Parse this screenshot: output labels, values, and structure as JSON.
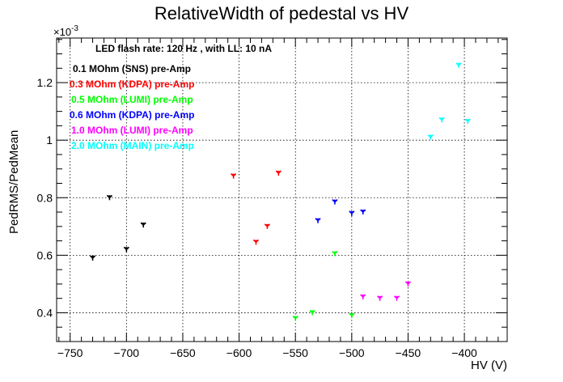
{
  "chart_data": {
    "type": "scatter",
    "title": "RelativeWidth of pedestal vs HV",
    "xlabel": "HV (V)",
    "ylabel": "PedRMS/PedMean",
    "y_exponent_label": "×10",
    "y_exponent_power": "-3",
    "xlim": [
      -762,
      -362
    ],
    "ylim": [
      0.3,
      1.355
    ],
    "x_ticks": [
      -750,
      -700,
      -650,
      -600,
      -550,
      -500,
      -450,
      -400
    ],
    "x_tick_labels": [
      "−750",
      "−700",
      "−650",
      "−600",
      "−550",
      "−500",
      "−450",
      "−400"
    ],
    "y_ticks": [
      0.4,
      0.6,
      0.8,
      1.0,
      1.2
    ],
    "y_tick_labels": [
      "0.4",
      "0.6",
      "0.8",
      "1",
      "1.2"
    ],
    "grid": true,
    "legend_placement": "top-left",
    "header": "LED flash rate: 120 Hz , with LL: 10 nA",
    "series": [
      {
        "name": "0.1 MOhm (SNS) pre-Amp",
        "color": "#000000",
        "x": [
          -730,
          -715,
          -700,
          -685
        ],
        "y": [
          0.59,
          0.8,
          0.62,
          0.705
        ]
      },
      {
        "name": "0.3 MOhm (KDPA) pre-Amp",
        "color": "#ff0000",
        "x": [
          -605,
          -585,
          -575,
          -565
        ],
        "y": [
          0.875,
          0.645,
          0.7,
          0.885
        ]
      },
      {
        "name": "0.5 MOhm (LUMI) pre-Amp",
        "color": "#00ff00",
        "x": [
          -550,
          -535,
          -515,
          -500
        ],
        "y": [
          0.38,
          0.4,
          0.605,
          0.39
        ]
      },
      {
        "name": "0.6 MOhm (KDPA) pre-Amp",
        "color": "#0000ff",
        "x": [
          -530,
          -515,
          -500,
          -490
        ],
        "y": [
          0.72,
          0.785,
          0.745,
          0.75
        ]
      },
      {
        "name": "1.0 MOhm (LUMI) pre-Amp",
        "color": "#ff00ff",
        "x": [
          -490,
          -475,
          -460,
          -450
        ],
        "y": [
          0.455,
          0.45,
          0.45,
          0.5
        ]
      },
      {
        "name": "2.0 MOhm (MAIN) pre-Amp",
        "color": "#00ffff",
        "x": [
          -430,
          -420,
          -405,
          -397
        ],
        "y": [
          1.01,
          1.07,
          1.26,
          1.065
        ]
      }
    ]
  }
}
